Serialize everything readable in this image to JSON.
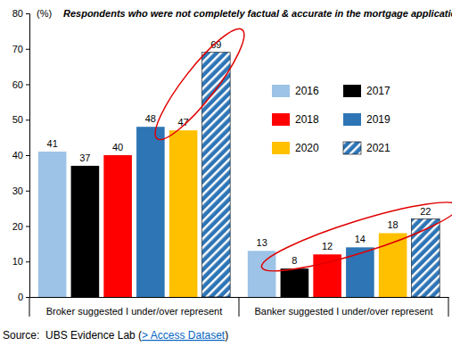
{
  "chart_data": {
    "type": "bar",
    "title": "Respondents who were not completely factual & accurate in the mortgage application",
    "y_label": "(%)",
    "source": "Source:  UBS Evidence Lab (> Access Dataset)",
    "categories": [
      "Broker suggested I under/over represent",
      "Banker suggested I under/over represent"
    ],
    "series": [
      {
        "name": "2016",
        "color": "#9dc3e6",
        "values": [
          41,
          13
        ]
      },
      {
        "name": "2017",
        "color": "#000000",
        "values": [
          37,
          8
        ]
      },
      {
        "name": "2018",
        "color": "#ff0000",
        "values": [
          40,
          12
        ]
      },
      {
        "name": "2019",
        "color": "#2e75b6",
        "values": [
          48,
          14
        ]
      },
      {
        "name": "2020",
        "color": "#ffc000",
        "values": [
          47,
          18
        ]
      },
      {
        "name": "2021",
        "color": "#2e75b6",
        "values": [
          69,
          22
        ]
      }
    ],
    "ylim": [
      0,
      80
    ],
    "yticks": [
      0,
      10,
      20,
      30,
      40,
      50,
      60,
      70,
      80
    ],
    "data_labels": true,
    "legend": "top-right",
    "grid": false
  }
}
